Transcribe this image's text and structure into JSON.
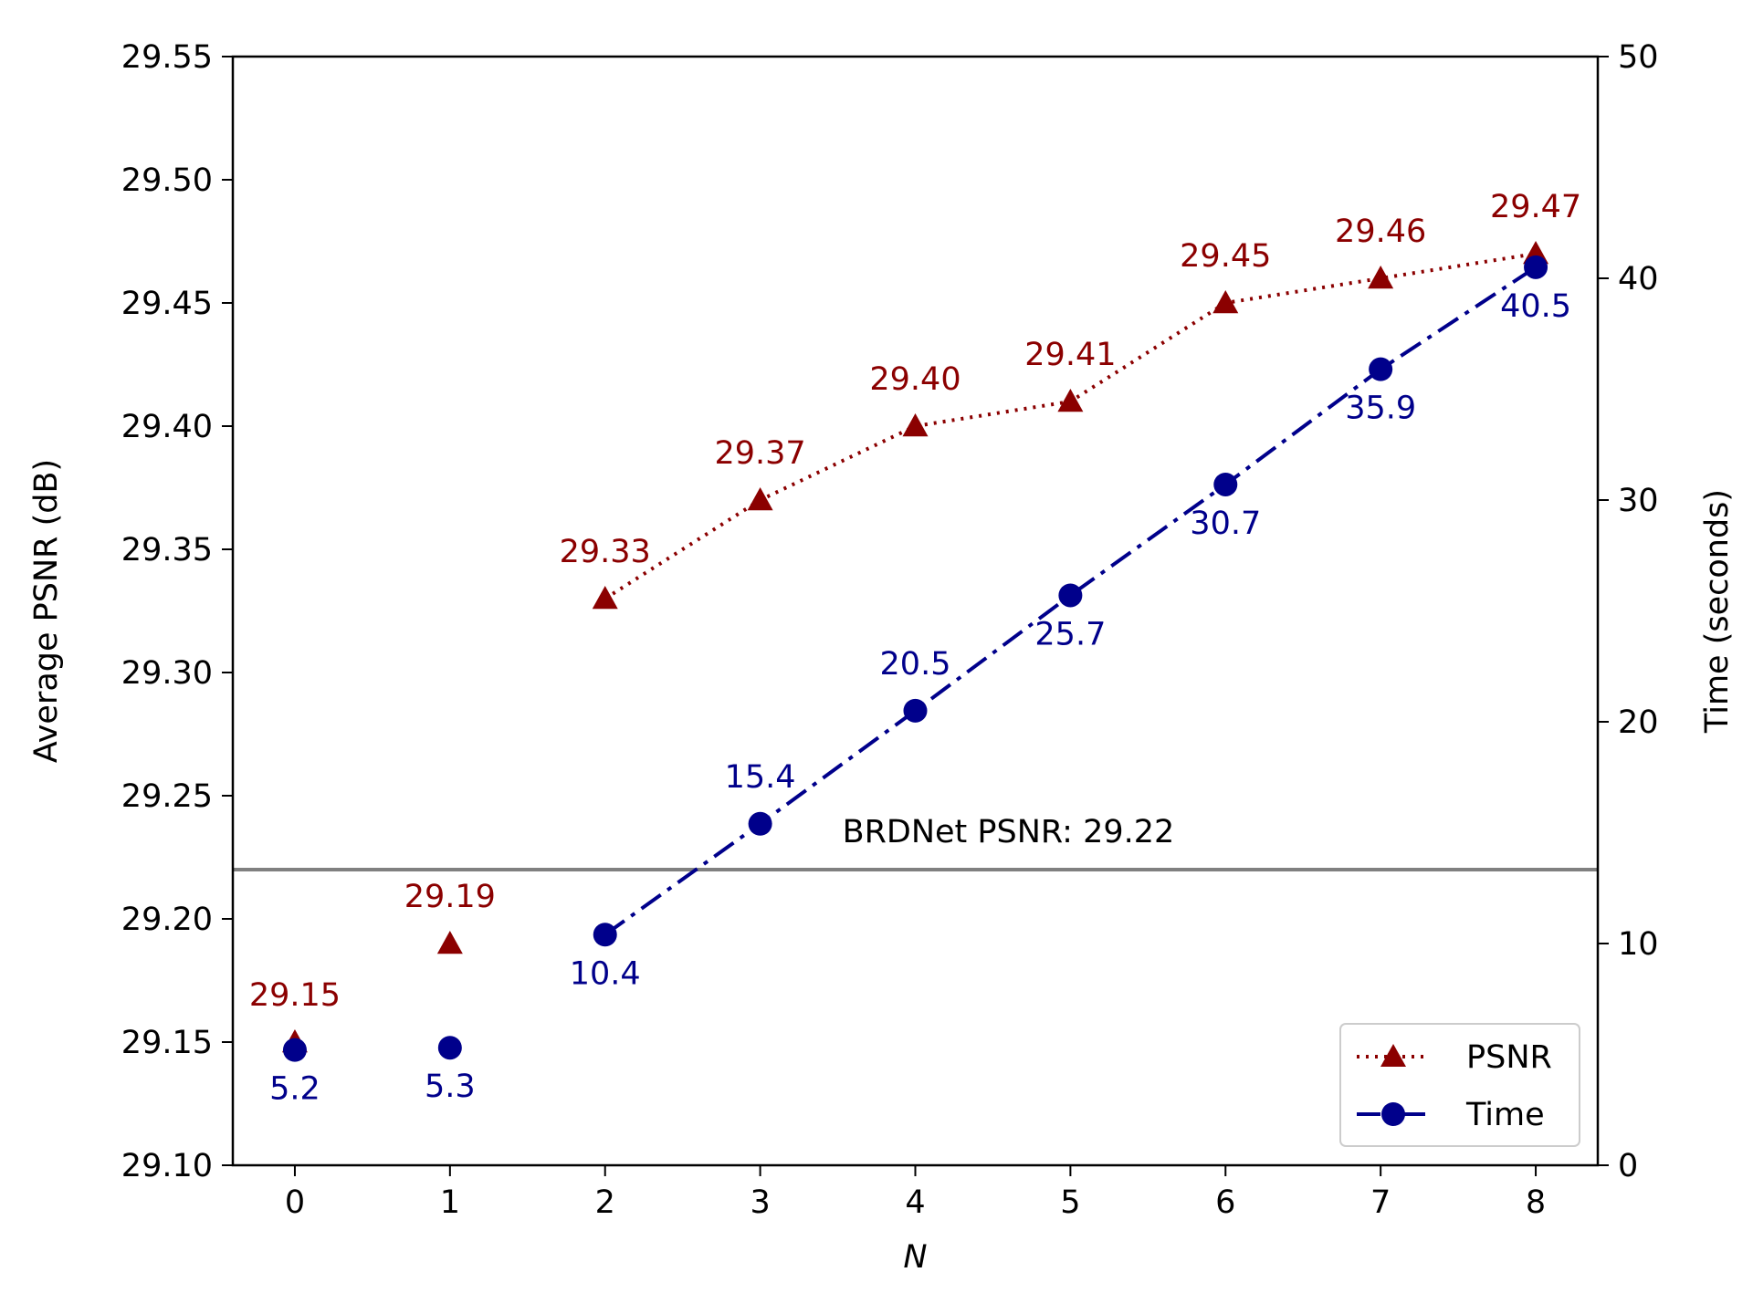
{
  "chart_data": {
    "type": "line",
    "xlabel": "N",
    "ylabel_left": "Average PSNR (dB)",
    "ylabel_right": "Time (seconds)",
    "x_ticks": [
      0,
      1,
      2,
      3,
      4,
      5,
      6,
      7,
      8
    ],
    "xlim": [
      -0.4,
      8.4
    ],
    "ylim_left": [
      29.1,
      29.55
    ],
    "yticks_left": [
      "29.10",
      "29.15",
      "29.20",
      "29.25",
      "29.30",
      "29.35",
      "29.40",
      "29.45",
      "29.50",
      "29.55"
    ],
    "ylim_right": [
      0,
      50
    ],
    "yticks_right": [
      "0",
      "10",
      "20",
      "30",
      "40",
      "50"
    ],
    "grid": false,
    "legend_position": "lower-right",
    "series": [
      {
        "name": "PSNR",
        "axis": "left",
        "color": "#8b0000",
        "line_style": "dotted",
        "marker": "triangle",
        "line_from_index": 2,
        "x": [
          0,
          1,
          2,
          3,
          4,
          5,
          6,
          7,
          8
        ],
        "values": [
          29.15,
          29.19,
          29.33,
          29.37,
          29.4,
          29.41,
          29.45,
          29.46,
          29.47
        ],
        "labels": [
          "29.15",
          "29.19",
          "29.33",
          "29.37",
          "29.40",
          "29.41",
          "29.45",
          "29.46",
          "29.47"
        ],
        "label_position": "above"
      },
      {
        "name": "Time",
        "axis": "right",
        "color": "#00008b",
        "line_style": "dashdot",
        "marker": "circle",
        "line_from_index": 2,
        "x": [
          0,
          1,
          2,
          3,
          4,
          5,
          6,
          7,
          8
        ],
        "values": [
          5.2,
          5.3,
          10.4,
          15.4,
          20.5,
          25.7,
          30.7,
          35.9,
          40.5
        ],
        "labels": [
          "5.2",
          "5.3",
          "10.4",
          "15.4",
          "20.5",
          "25.7",
          "30.7",
          "35.9",
          "40.5"
        ],
        "label_positions": [
          "below",
          "below",
          "below",
          "above",
          "above",
          "below",
          "below",
          "below",
          "below"
        ]
      }
    ],
    "reference_line": {
      "axis": "left",
      "value": 29.22,
      "color": "#808080",
      "label": "BRDNet PSNR: 29.22",
      "label_x": 4.6
    }
  }
}
